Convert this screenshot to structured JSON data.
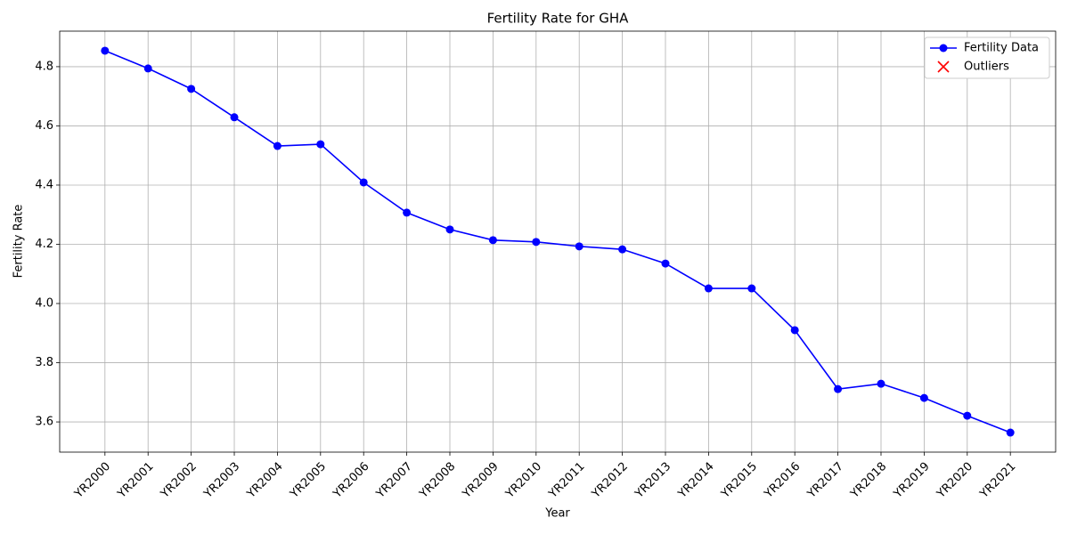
{
  "chart_data": {
    "type": "line",
    "title": "Fertility Rate for GHA",
    "x_label": "Year",
    "y_label": "Fertility Rate",
    "categories": [
      "YR2000",
      "YR2001",
      "YR2002",
      "YR2003",
      "YR2004",
      "YR2005",
      "YR2006",
      "YR2007",
      "YR2008",
      "YR2009",
      "YR2010",
      "YR2011",
      "YR2012",
      "YR2013",
      "YR2014",
      "YR2015",
      "YR2016",
      "YR2017",
      "YR2018",
      "YR2019",
      "YR2020",
      "YR2021"
    ],
    "series": [
      {
        "name": "Fertility Data",
        "color": "#0000ff",
        "marker": "o",
        "values": [
          4.854,
          4.794,
          4.725,
          4.629,
          4.532,
          4.538,
          4.409,
          4.307,
          4.25,
          4.214,
          4.208,
          4.193,
          4.183,
          4.135,
          4.051,
          4.051,
          3.91,
          3.711,
          3.729,
          3.681,
          3.621,
          3.564
        ]
      },
      {
        "name": "Outliers",
        "color": "#ff0000",
        "marker": "x",
        "values": [
          null,
          null,
          null,
          null,
          null,
          null,
          null,
          null,
          null,
          null,
          null,
          null,
          null,
          null,
          null,
          null,
          null,
          null,
          null,
          null,
          null,
          null
        ]
      }
    ],
    "ylim": [
      3.498,
      4.92
    ],
    "yticks": [
      3.6,
      3.8,
      {
        "value": 4,
        "label": "4.0"
      },
      4.2,
      4.4,
      4.6,
      4.8
    ],
    "grid": true,
    "legend": "upper right"
  }
}
